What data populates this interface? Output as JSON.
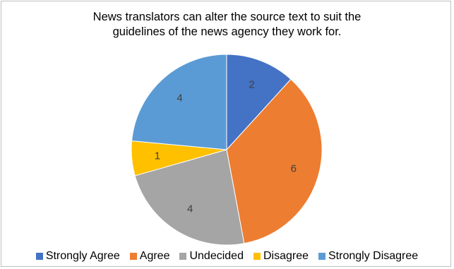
{
  "chart_data": {
    "type": "pie",
    "title_lines": [
      "News translators can alter the source text to suit the",
      "guidelines of the news agency they work for."
    ],
    "categories": [
      "Strongly Agree",
      "Agree",
      "Undecided",
      "Disagree",
      "Strongly Disagree"
    ],
    "values": [
      2,
      6,
      4,
      1,
      4
    ],
    "colors": [
      "#4472c4",
      "#ed7d31",
      "#a5a5a5",
      "#ffc000",
      "#5b9bd5"
    ],
    "legend_position": "bottom",
    "data_labels": true
  }
}
